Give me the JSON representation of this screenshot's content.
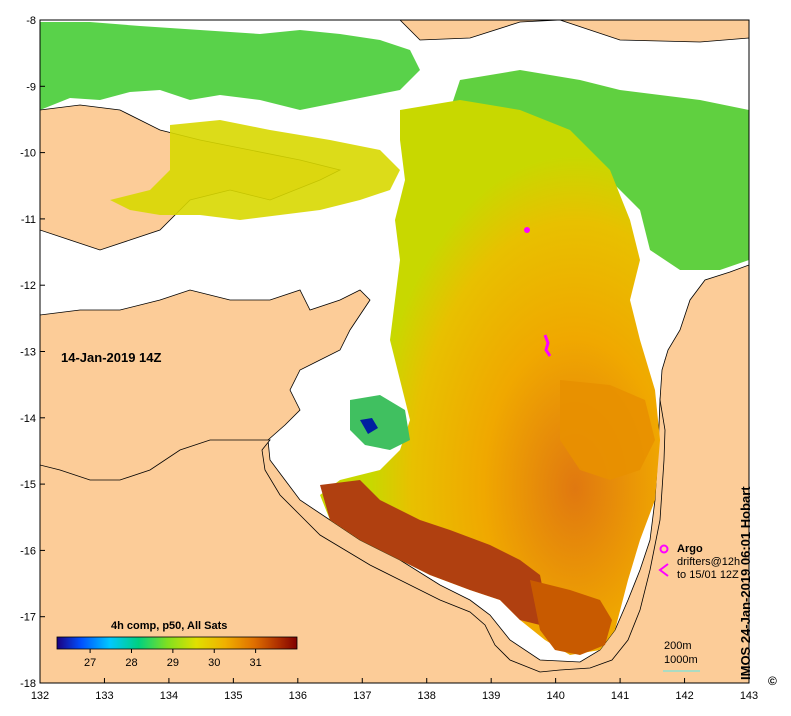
{
  "chart_data": {
    "type": "heatmap",
    "title": "",
    "date_label": "14-Jan-2019 14Z",
    "product_label": "4h comp, p50, All Sats",
    "credit": "IMOS 24-Jan-2019 06:01 Hobart",
    "copyright_symbol": "©",
    "x_ticks": [
      "132",
      "133",
      "134",
      "135",
      "136",
      "137",
      "138",
      "139",
      "140",
      "141",
      "142",
      "143"
    ],
    "y_ticks": [
      "-8",
      "-9",
      "-10",
      "-11",
      "-12",
      "-13",
      "-14",
      "-15",
      "-16",
      "-17",
      "-18"
    ],
    "xlim": [
      132,
      143
    ],
    "ylim": [
      -18,
      -8
    ],
    "colorbar": {
      "ticks": [
        "27",
        "28",
        "29",
        "30",
        "31"
      ],
      "range": [
        26.2,
        32.0
      ],
      "colors": [
        "#1a0080",
        "#0050ff",
        "#00c8ff",
        "#00d080",
        "#80e020",
        "#e0e000",
        "#f0b000",
        "#e07000",
        "#b03000",
        "#800000"
      ]
    },
    "legend": {
      "argo_label": "Argo",
      "drifters_label": "drifters@12h",
      "drifters_range": "to 15/01 12Z",
      "argo_color": "#ff00ff",
      "drifter_color": "#ff00ff",
      "contour_200": "200m",
      "contour_1000": "1000m"
    },
    "colors": {
      "land": "#fccc98",
      "no_data": "#ffffff",
      "coastline": "#000000"
    }
  }
}
